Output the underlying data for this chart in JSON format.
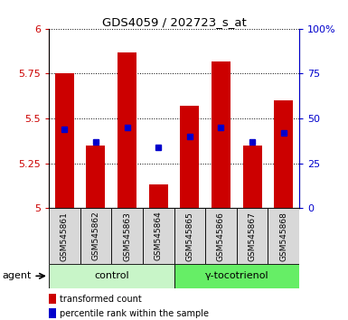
{
  "title": "GDS4059 / 202723_s_at",
  "samples": [
    "GSM545861",
    "GSM545862",
    "GSM545863",
    "GSM545864",
    "GSM545865",
    "GSM545866",
    "GSM545867",
    "GSM545868"
  ],
  "red_values": [
    5.75,
    5.35,
    5.87,
    5.13,
    5.57,
    5.82,
    5.35,
    5.6
  ],
  "blue_values": [
    44,
    37,
    45,
    34,
    40,
    45,
    37,
    42
  ],
  "ylim_left": [
    5.0,
    6.0
  ],
  "ylim_right": [
    0,
    100
  ],
  "yticks_left": [
    5.0,
    5.25,
    5.5,
    5.75,
    6.0
  ],
  "yticks_right": [
    0,
    25,
    50,
    75,
    100
  ],
  "ytick_labels_left": [
    "5",
    "5.25",
    "5.5",
    "5.75",
    "6"
  ],
  "ytick_labels_right": [
    "0",
    "25",
    "50",
    "75",
    "100%"
  ],
  "groups": [
    {
      "label": "control",
      "indices": [
        0,
        1,
        2,
        3
      ],
      "color": "#c8f5c8"
    },
    {
      "label": "γ-tocotrienol",
      "indices": [
        4,
        5,
        6,
        7
      ],
      "color": "#66ee66"
    }
  ],
  "bar_color": "#cc0000",
  "point_color": "#0000cc",
  "bar_width": 0.6,
  "grid_color": "black",
  "agent_label": "agent",
  "legend_items": [
    {
      "color": "#cc0000",
      "label": "transformed count"
    },
    {
      "color": "#0000cc",
      "label": "percentile rank within the sample"
    }
  ]
}
